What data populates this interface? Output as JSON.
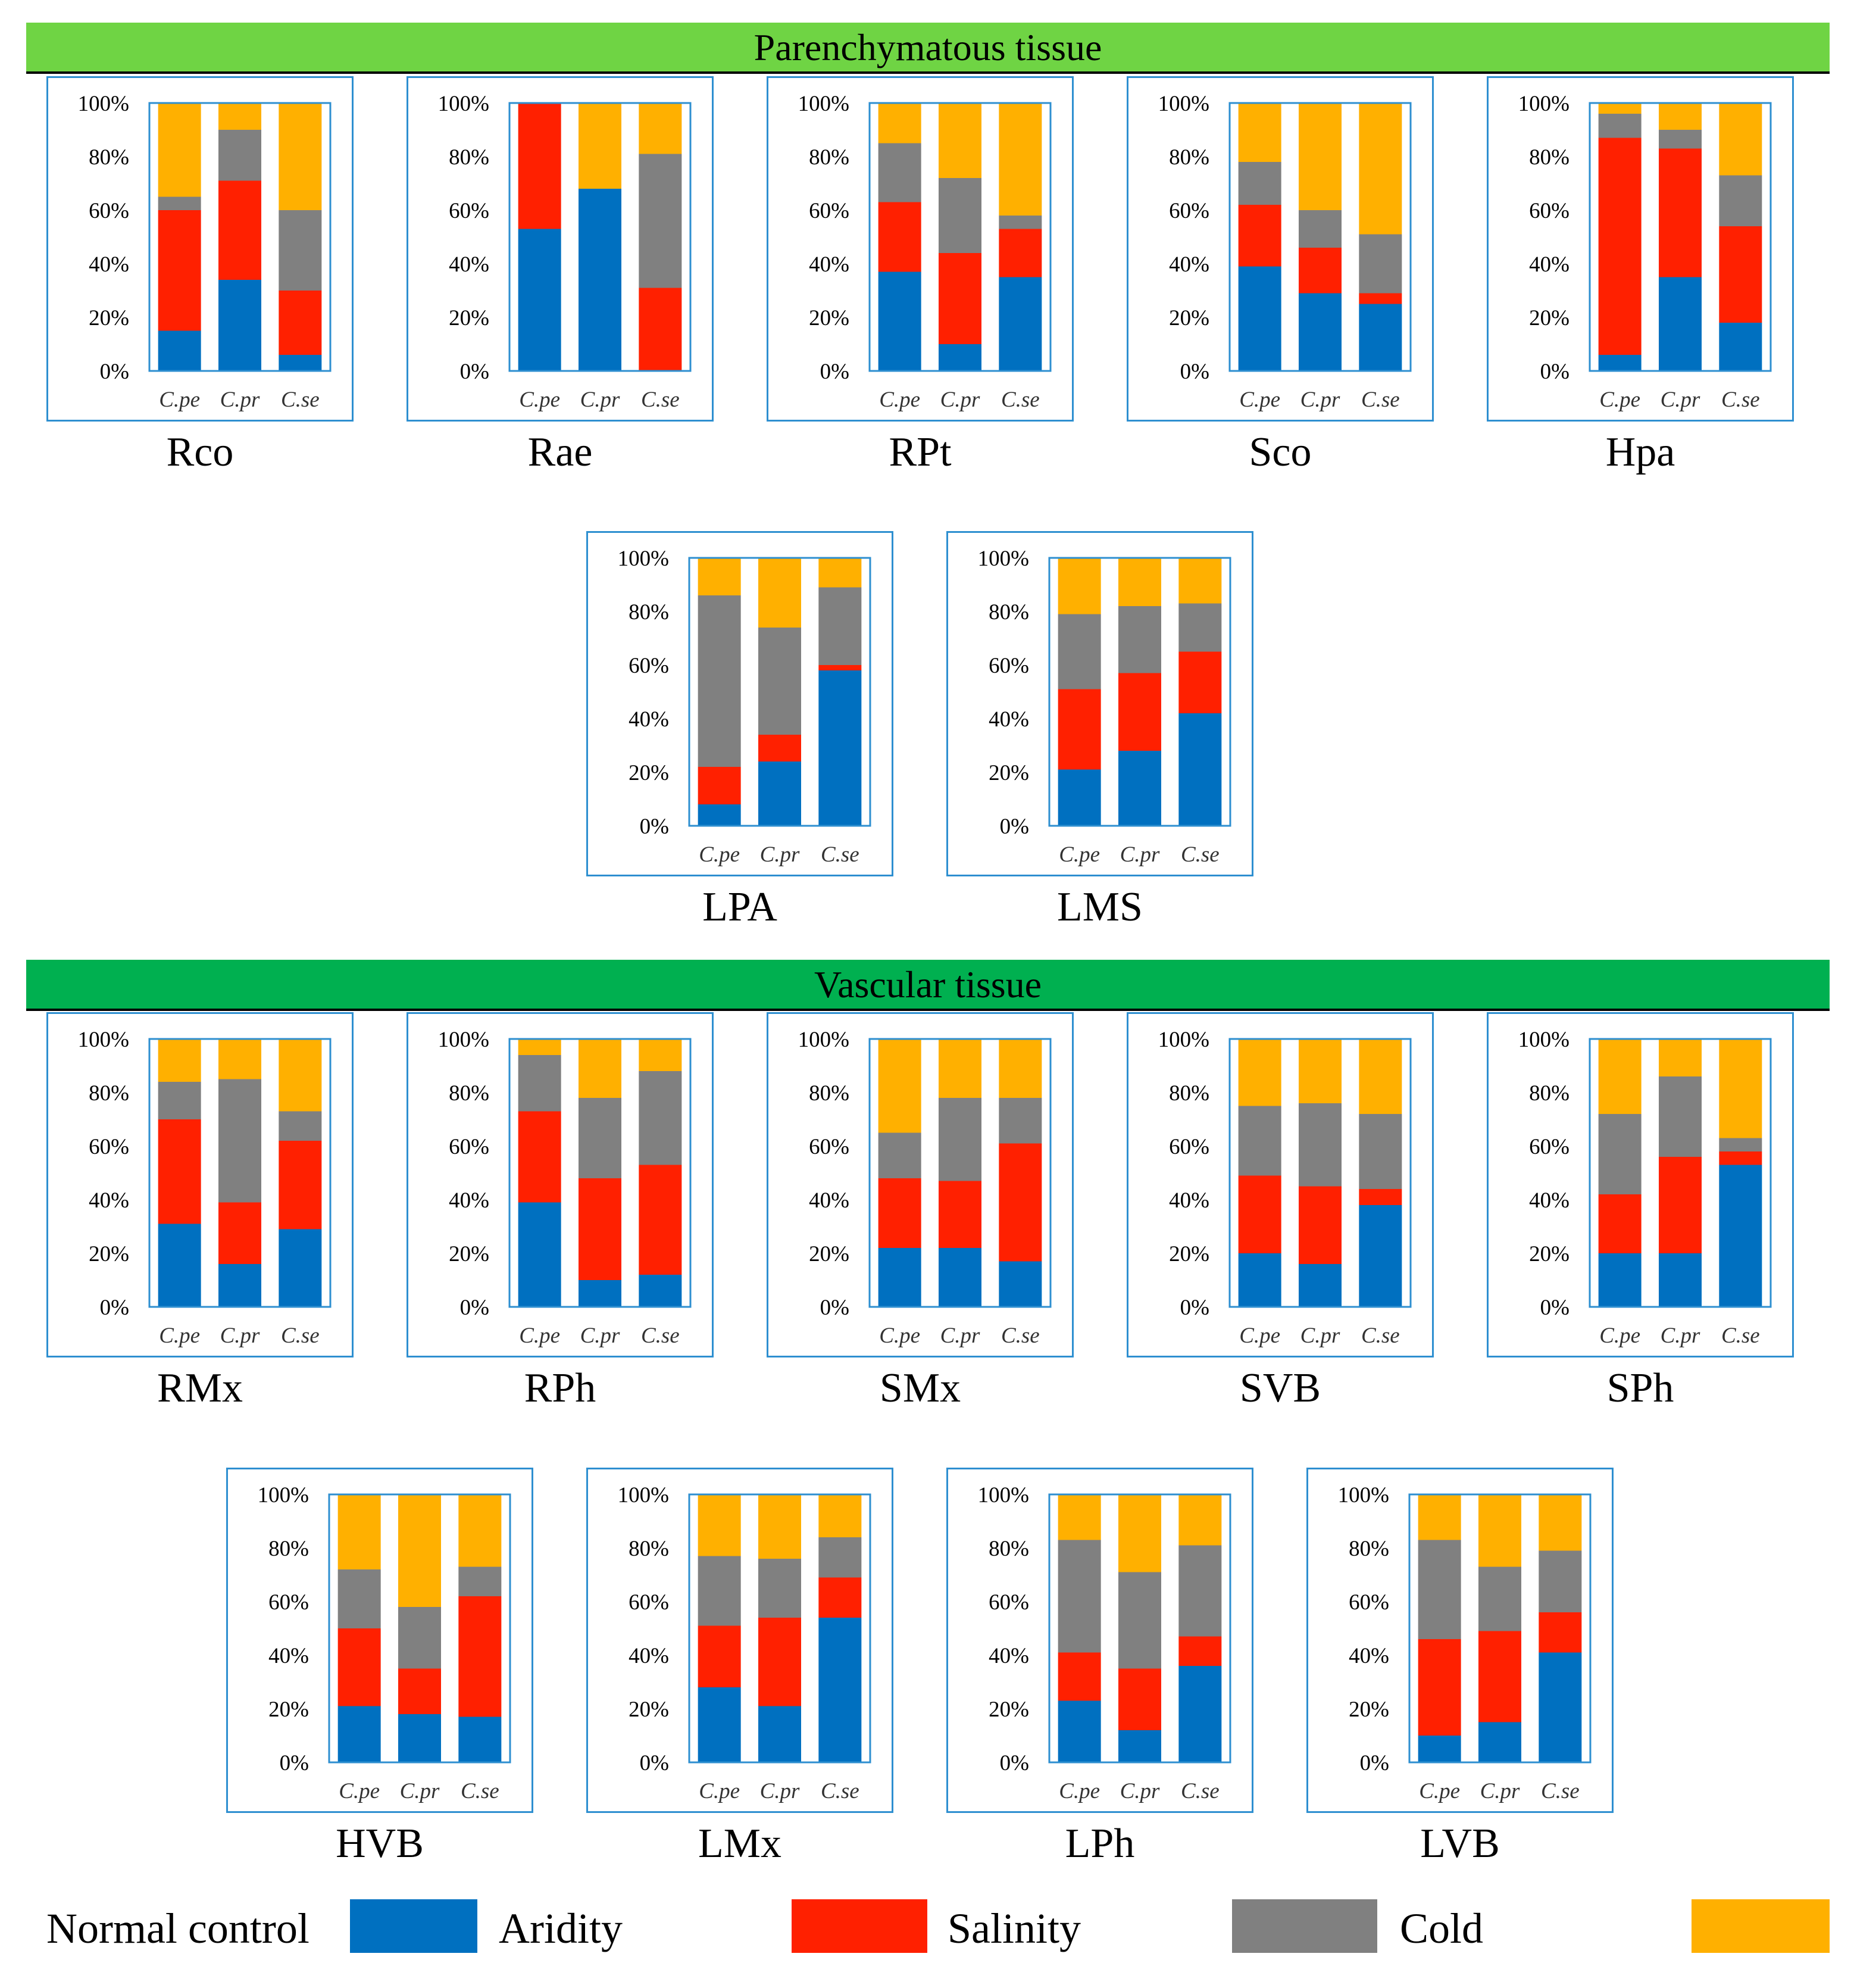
{
  "banners": {
    "parenchymatous": {
      "label": "Parenchymatous tissue",
      "color": "#6fd444"
    },
    "vascular": {
      "label": "Vascular tissue",
      "color": "#00b050"
    }
  },
  "legend": {
    "labels": [
      "Normal control",
      "Aridity",
      "Salinity",
      "Cold"
    ],
    "colors": [
      "#0070c0",
      "#ff2000",
      "#808080",
      "#ffb000"
    ]
  },
  "axis": {
    "ticks": [
      "0%",
      "20%",
      "40%",
      "60%",
      "80%",
      "100%"
    ]
  },
  "chart_data": {
    "type": "bar",
    "stacked": true,
    "ylim": [
      0,
      100
    ],
    "ytick_format": "percent",
    "categories": [
      "C.pe",
      "C.pr",
      "C.se"
    ],
    "series_names": [
      "Normal control",
      "Aridity",
      "Salinity",
      "Cold"
    ],
    "series_colors": [
      "#0070c0",
      "#ff2000",
      "#808080",
      "#ffb000"
    ],
    "panels": [
      {
        "title": "Rco",
        "group": "Parenchymatous tissue",
        "values": [
          [
            15,
            45,
            5,
            35
          ],
          [
            34,
            37,
            19,
            10
          ],
          [
            6,
            24,
            30,
            40
          ]
        ]
      },
      {
        "title": "Rae",
        "group": "Parenchymatous tissue",
        "values": [
          [
            53,
            47,
            0,
            0
          ],
          [
            68,
            0,
            0,
            32
          ],
          [
            0,
            31,
            50,
            19
          ]
        ]
      },
      {
        "title": "RPt",
        "group": "Parenchymatous tissue",
        "values": [
          [
            37,
            26,
            22,
            15
          ],
          [
            10,
            34,
            28,
            28
          ],
          [
            35,
            18,
            5,
            42
          ]
        ]
      },
      {
        "title": "Sco",
        "group": "Parenchymatous tissue",
        "values": [
          [
            39,
            23,
            16,
            22
          ],
          [
            29,
            17,
            14,
            40
          ],
          [
            25,
            4,
            22,
            49
          ]
        ]
      },
      {
        "title": "Hpa",
        "group": "Parenchymatous tissue",
        "values": [
          [
            6,
            81,
            9,
            4
          ],
          [
            35,
            48,
            7,
            10
          ],
          [
            18,
            36,
            19,
            27
          ]
        ]
      },
      {
        "title": "LPA",
        "group": "Parenchymatous tissue",
        "values": [
          [
            8,
            14,
            64,
            14
          ],
          [
            24,
            10,
            40,
            26
          ],
          [
            58,
            2,
            29,
            11
          ]
        ]
      },
      {
        "title": "LMS",
        "group": "Parenchymatous tissue",
        "values": [
          [
            21,
            30,
            28,
            21
          ],
          [
            28,
            29,
            25,
            18
          ],
          [
            42,
            23,
            18,
            17
          ]
        ]
      },
      {
        "title": "RMx",
        "group": "Vascular tissue",
        "values": [
          [
            31,
            39,
            14,
            16
          ],
          [
            16,
            23,
            46,
            15
          ],
          [
            29,
            33,
            11,
            27
          ]
        ]
      },
      {
        "title": "RPh",
        "group": "Vascular tissue",
        "values": [
          [
            39,
            34,
            21,
            6
          ],
          [
            10,
            38,
            30,
            22
          ],
          [
            12,
            41,
            35,
            12
          ]
        ]
      },
      {
        "title": "SMx",
        "group": "Vascular tissue",
        "values": [
          [
            22,
            26,
            17,
            35
          ],
          [
            22,
            25,
            31,
            22
          ],
          [
            17,
            44,
            17,
            22
          ]
        ]
      },
      {
        "title": "SVB",
        "group": "Vascular tissue",
        "values": [
          [
            20,
            29,
            26,
            25
          ],
          [
            16,
            29,
            31,
            24
          ],
          [
            38,
            6,
            28,
            28
          ]
        ]
      },
      {
        "title": "SPh",
        "group": "Vascular tissue",
        "values": [
          [
            20,
            22,
            30,
            28
          ],
          [
            20,
            36,
            30,
            14
          ],
          [
            53,
            5,
            5,
            37
          ]
        ]
      },
      {
        "title": "HVB",
        "group": "Vascular tissue",
        "values": [
          [
            21,
            29,
            22,
            28
          ],
          [
            18,
            17,
            23,
            42
          ],
          [
            17,
            45,
            11,
            27
          ]
        ]
      },
      {
        "title": "LMx",
        "group": "Vascular tissue",
        "values": [
          [
            28,
            23,
            26,
            23
          ],
          [
            21,
            33,
            22,
            24
          ],
          [
            54,
            15,
            15,
            16
          ]
        ]
      },
      {
        "title": "LPh",
        "group": "Vascular tissue",
        "values": [
          [
            23,
            18,
            42,
            17
          ],
          [
            12,
            23,
            36,
            29
          ],
          [
            36,
            11,
            34,
            19
          ]
        ]
      },
      {
        "title": "LVB",
        "group": "Vascular tissue",
        "values": [
          [
            10,
            36,
            37,
            17
          ],
          [
            15,
            34,
            24,
            27
          ],
          [
            41,
            15,
            23,
            21
          ]
        ]
      }
    ]
  }
}
